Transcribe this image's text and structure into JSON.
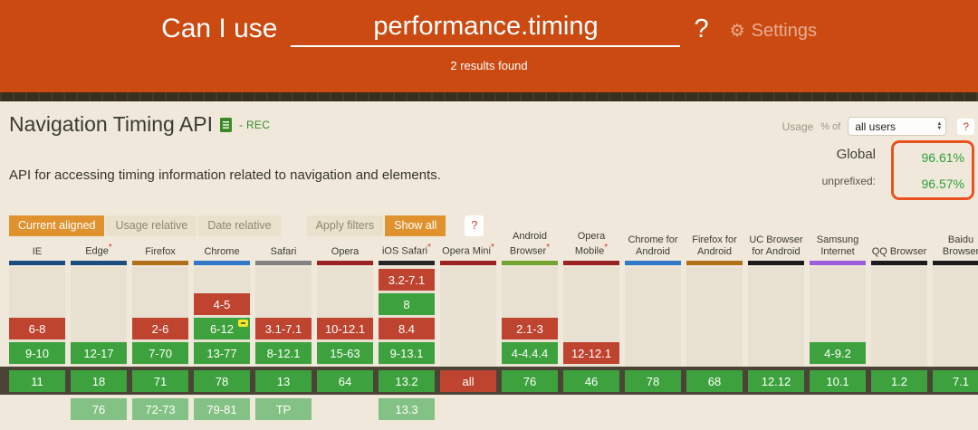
{
  "header": {
    "prefix": "Can I use",
    "query": "performance.timing",
    "suffix": "?",
    "settings_label": "Settings",
    "results_text": "2 results found",
    "background_color": "#cb4a11"
  },
  "feature": {
    "title": "Navigation Timing API",
    "spec_status": "- REC",
    "description": "API for accessing timing information related to navigation and elements."
  },
  "usage": {
    "usage_label": "Usage",
    "percent_of_label": "% of",
    "select_value": "all users",
    "help_label": "?",
    "box_border_color": "#ea5220",
    "value_color": "#2f9d38",
    "rows": [
      {
        "label": "Global",
        "value": "96.61%"
      },
      {
        "label": "unprefixed:",
        "value": "96.57%"
      }
    ]
  },
  "filters": {
    "current_aligned": "Current aligned",
    "usage_relative": "Usage relative",
    "date_relative": "Date relative",
    "apply_filters": "Apply filters",
    "show_all": "Show all",
    "help": "?",
    "active_color": "#e0922f"
  },
  "table": {
    "legend": {
      "supported_color": "#3da23d",
      "unsupported_color": "#bf4430",
      "future_color": "#84c184",
      "current_band_color": "#4b4335"
    },
    "browsers": [
      {
        "id": "ie",
        "name": "IE",
        "asterisk": false,
        "color": "#1c4d80",
        "cells": [
          {
            "row": 2,
            "label": "6-8",
            "support": "n"
          },
          {
            "row": 3,
            "label": "9-10",
            "support": "y"
          },
          {
            "row": 4,
            "label": "11",
            "support": "y"
          }
        ]
      },
      {
        "id": "edge",
        "name": "Edge",
        "asterisk": true,
        "color": "#1c4d80",
        "cells": [
          {
            "row": 3,
            "label": "12-17",
            "support": "y"
          },
          {
            "row": 4,
            "label": "18",
            "support": "y"
          },
          {
            "row": 5,
            "label": "76",
            "support": "future"
          }
        ]
      },
      {
        "id": "firefox",
        "name": "Firefox",
        "asterisk": false,
        "color": "#b06f18",
        "cells": [
          {
            "row": 2,
            "label": "2-6",
            "support": "n"
          },
          {
            "row": 3,
            "label": "7-70",
            "support": "y"
          },
          {
            "row": 4,
            "label": "71",
            "support": "y"
          },
          {
            "row": 5,
            "label": "72-73",
            "support": "future"
          }
        ]
      },
      {
        "id": "chrome",
        "name": "Chrome",
        "asterisk": false,
        "color": "#3178c6",
        "cells": [
          {
            "row": 1,
            "label": "4-5",
            "support": "n"
          },
          {
            "row": 2,
            "label": "6-12",
            "support": "y",
            "note": true
          },
          {
            "row": 3,
            "label": "13-77",
            "support": "y"
          },
          {
            "row": 4,
            "label": "78",
            "support": "y"
          },
          {
            "row": 5,
            "label": "79-81",
            "support": "future"
          }
        ]
      },
      {
        "id": "safari",
        "name": "Safari",
        "asterisk": false,
        "color": "#828282",
        "cells": [
          {
            "row": 2,
            "label": "3.1-7.1",
            "support": "n"
          },
          {
            "row": 3,
            "label": "8-12.1",
            "support": "y"
          },
          {
            "row": 4,
            "label": "13",
            "support": "y"
          },
          {
            "row": 5,
            "label": "TP",
            "support": "future"
          }
        ]
      },
      {
        "id": "opera",
        "name": "Opera",
        "asterisk": false,
        "color": "#9d2222",
        "cells": [
          {
            "row": 2,
            "label": "10-12.1",
            "support": "n"
          },
          {
            "row": 3,
            "label": "15-63",
            "support": "y"
          },
          {
            "row": 4,
            "label": "64",
            "support": "y"
          }
        ]
      },
      {
        "id": "ios-safari",
        "name": "iOS Safari",
        "asterisk": true,
        "color": "#262626",
        "cells": [
          {
            "row": 0,
            "label": "3.2-7.1",
            "support": "n"
          },
          {
            "row": 1,
            "label": "8",
            "support": "y"
          },
          {
            "row": 2,
            "label": "8.4",
            "support": "n"
          },
          {
            "row": 3,
            "label": "9-13.1",
            "support": "y"
          },
          {
            "row": 4,
            "label": "13.2",
            "support": "y"
          },
          {
            "row": 5,
            "label": "13.3",
            "support": "future"
          }
        ]
      },
      {
        "id": "opera-mini",
        "name": "Opera Mini",
        "asterisk": true,
        "color": "#9d2222",
        "cells": [
          {
            "row": 4,
            "label": "all",
            "support": "n"
          }
        ]
      },
      {
        "id": "android-browser",
        "name": "Android Browser",
        "asterisk": true,
        "color": "#72a42f",
        "cells": [
          {
            "row": 2,
            "label": "2.1-3",
            "support": "n"
          },
          {
            "row": 3,
            "label": "4-4.4.4",
            "support": "y"
          },
          {
            "row": 4,
            "label": "76",
            "support": "y"
          }
        ]
      },
      {
        "id": "opera-mobile",
        "name": "Opera Mobile",
        "asterisk": true,
        "color": "#9d2222",
        "cells": [
          {
            "row": 3,
            "label": "12-12.1",
            "support": "n"
          },
          {
            "row": 4,
            "label": "46",
            "support": "y"
          }
        ]
      },
      {
        "id": "chrome-android",
        "name": "Chrome for Android",
        "asterisk": false,
        "color": "#3178c6",
        "cells": [
          {
            "row": 4,
            "label": "78",
            "support": "y"
          }
        ]
      },
      {
        "id": "firefox-android",
        "name": "Firefox for Android",
        "asterisk": false,
        "color": "#b06f18",
        "cells": [
          {
            "row": 4,
            "label": "68",
            "support": "y"
          }
        ]
      },
      {
        "id": "uc-browser",
        "name": "UC Browser for Android",
        "asterisk": false,
        "color": "#1b1b1b",
        "cells": [
          {
            "row": 4,
            "label": "12.12",
            "support": "y"
          }
        ]
      },
      {
        "id": "samsung-internet",
        "name": "Samsung Internet",
        "asterisk": false,
        "color": "#9b5dd8",
        "cells": [
          {
            "row": 3,
            "label": "4-9.2",
            "support": "y"
          },
          {
            "row": 4,
            "label": "10.1",
            "support": "y"
          }
        ]
      },
      {
        "id": "qq-browser",
        "name": "QQ Browser",
        "asterisk": false,
        "color": "#1b1b1b",
        "cells": [
          {
            "row": 4,
            "label": "1.2",
            "support": "y"
          }
        ]
      },
      {
        "id": "baidu-browser",
        "name": "Baidu Browser",
        "asterisk": false,
        "color": "#1b1b1b",
        "cells": [
          {
            "row": 4,
            "label": "7.1",
            "support": "y"
          }
        ]
      }
    ]
  }
}
